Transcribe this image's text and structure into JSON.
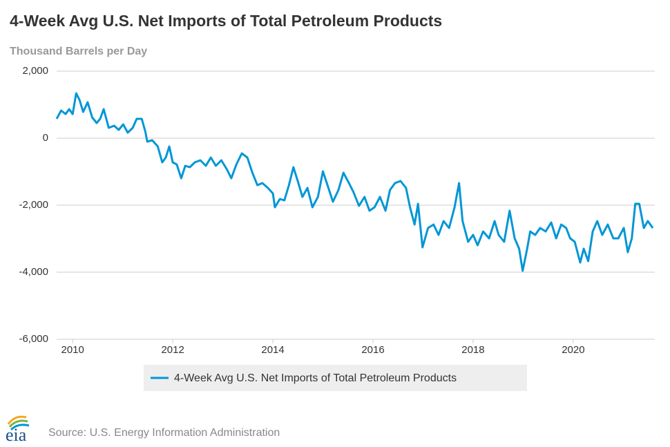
{
  "chart_data": {
    "type": "line",
    "title": "4-Week Avg U.S. Net Imports of Total Petroleum Products",
    "subtitle": "Thousand Barrels per Day",
    "source": "Source: U.S. Energy Information Administration",
    "logo": "eia",
    "xlim": [
      2009.68,
      2021.63
    ],
    "xticks": [
      2010,
      2012,
      2014,
      2016,
      2018,
      2020
    ],
    "ylim": [
      -6000,
      2000
    ],
    "yticks": [
      {
        "value": 2000,
        "label": "2,000"
      },
      0,
      {
        "value": -2000,
        "label": "-2,000"
      },
      {
        "value": -4000,
        "label": "-4,000"
      },
      {
        "value": -6000,
        "label": "-6,000"
      }
    ],
    "grid": true,
    "legend": "bottom",
    "x": [
      2009.68,
      2009.77,
      2009.86,
      2009.93,
      2010,
      2010.07,
      2010.14,
      2010.21,
      2010.3,
      2010.39,
      2010.48,
      2010.55,
      2010.62,
      2010.72,
      2010.83,
      2010.92,
      2011.01,
      2011.1,
      2011.2,
      2011.28,
      2011.38,
      2011.45,
      2011.49,
      2011.59,
      2011.7,
      2011.79,
      2011.86,
      2011.93,
      2012,
      2012.08,
      2012.17,
      2012.25,
      2012.34,
      2012.44,
      2012.55,
      2012.66,
      2012.76,
      2012.86,
      2012.97,
      2013.08,
      2013.17,
      2013.27,
      2013.38,
      2013.49,
      2013.59,
      2013.69,
      2013.79,
      2013.9,
      2014,
      2014.04,
      2014.14,
      2014.23,
      2014.32,
      2014.41,
      2014.51,
      2014.59,
      2014.69,
      2014.79,
      2014.9,
      2015,
      2015.1,
      2015.2,
      2015.31,
      2015.41,
      2015.52,
      2015.61,
      2015.72,
      2015.83,
      2015.93,
      2016.03,
      2016.14,
      2016.25,
      2016.34,
      2016.44,
      2016.55,
      2016.66,
      2016.74,
      2016.83,
      2016.9,
      2016.99,
      2017.1,
      2017.21,
      2017.31,
      2017.41,
      2017.52,
      2017.63,
      2017.72,
      2017.79,
      2017.9,
      2018,
      2018.09,
      2018.2,
      2018.32,
      2018.43,
      2018.51,
      2018.62,
      2018.73,
      2018.83,
      2018.92,
      2018.99,
      2019.08,
      2019.14,
      2019.24,
      2019.34,
      2019.45,
      2019.56,
      2019.66,
      2019.76,
      2019.86,
      2019.94,
      2020.03,
      2020.14,
      2020.21,
      2020.3,
      2020.39,
      2020.48,
      2020.58,
      2020.69,
      2020.8,
      2020.9,
      2021.01,
      2021.09,
      2021.17,
      2021.24,
      2021.32,
      2021.41,
      2021.49,
      2021.59
    ],
    "series": [
      {
        "name": "4-Week Avg U.S. Net Imports of Total Petroleum Products",
        "color": "#0096d6",
        "values": [
          577,
          825,
          720,
          866,
          720,
          1340,
          1134,
          784,
          1072,
          619,
          454,
          577,
          866,
          309,
          371,
          247,
          412,
          165,
          309,
          577,
          577,
          206,
          -103,
          -62,
          -247,
          -722,
          -577,
          -247,
          -722,
          -784,
          -1196,
          -825,
          -866,
          -722,
          -660,
          -825,
          -577,
          -825,
          -660,
          -928,
          -1196,
          -784,
          -454,
          -577,
          -1031,
          -1402,
          -1340,
          -1485,
          -1649,
          -2062,
          -1814,
          -1856,
          -1402,
          -866,
          -1340,
          -1753,
          -1485,
          -2062,
          -1753,
          -990,
          -1443,
          -1897,
          -1546,
          -1031,
          -1340,
          -1608,
          -2021,
          -1753,
          -2165,
          -2062,
          -1753,
          -2165,
          -1546,
          -1340,
          -1278,
          -1485,
          -2062,
          -2577,
          -1959,
          -3258,
          -2680,
          -2577,
          -2887,
          -2474,
          -2680,
          -2062,
          -1340,
          -2474,
          -3093,
          -2887,
          -3196,
          -2784,
          -2990,
          -2474,
          -2887,
          -3093,
          -2165,
          -2990,
          -3299,
          -3959,
          -3299,
          -2784,
          -2887,
          -2680,
          -2784,
          -2515,
          -2990,
          -2577,
          -2680,
          -2990,
          -3093,
          -3711,
          -3299,
          -3670,
          -2784,
          -2474,
          -2887,
          -2577,
          -2990,
          -2990,
          -2680,
          -3402,
          -2990,
          -1959,
          -1959,
          -2680,
          -2474,
          -2680
        ]
      }
    ]
  }
}
